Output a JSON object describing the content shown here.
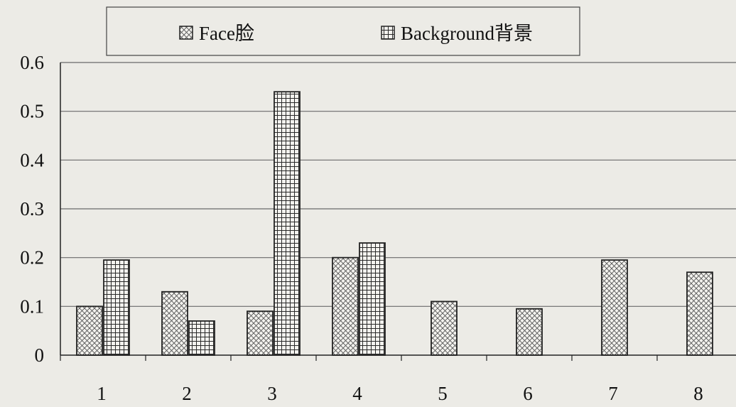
{
  "chart_data": {
    "type": "bar",
    "title": "",
    "xlabel": "",
    "ylabel": "",
    "categories": [
      "1",
      "2",
      "3",
      "4",
      "5",
      "6",
      "7",
      "8"
    ],
    "series": [
      {
        "name": "Face脸",
        "pattern": "crosshatch-diamond",
        "values": [
          0.1,
          0.13,
          0.09,
          0.2,
          0.11,
          0.095,
          0.195,
          0.17
        ]
      },
      {
        "name": "Background背景",
        "pattern": "grid",
        "values": [
          0.195,
          0.07,
          0.54,
          0.23,
          null,
          null,
          null,
          null
        ]
      }
    ],
    "ylim": [
      0,
      0.6
    ],
    "yticks": [
      "0",
      "0.1",
      "0.2",
      "0.3",
      "0.4",
      "0.5",
      "0.6"
    ],
    "grid": true,
    "legend_position": "top-center"
  },
  "colors": {
    "background": "#ecebe6",
    "axis": "#222222",
    "gridline": "#6a6a6a",
    "bar_fill": "#f3f2ee",
    "bar_stroke": "#222222"
  }
}
